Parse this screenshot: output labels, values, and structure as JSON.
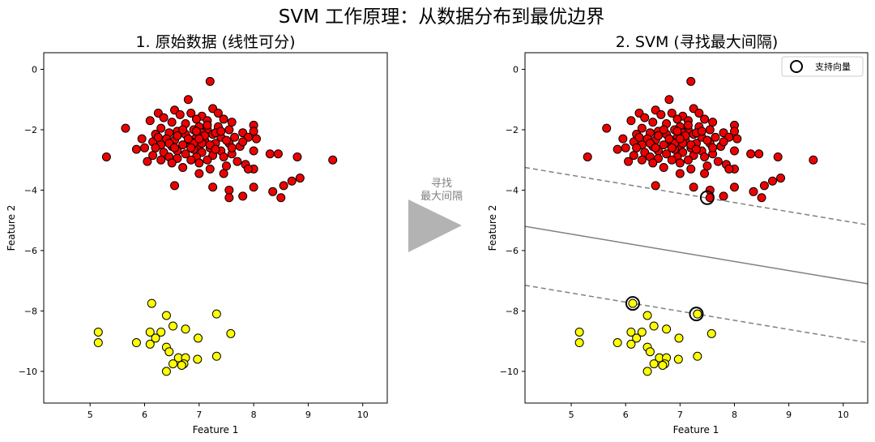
{
  "figure": {
    "title": "SVM 工作原理：从数据分布到最优边界",
    "arrow_label_line1": "寻找",
    "arrow_label_line2": "最大间隔"
  },
  "colors": {
    "red": "#ee0000",
    "yellow": "#ffff00",
    "edge": "#000000",
    "boundary": "#808080",
    "arrow": "#b3b3b3"
  },
  "chart_data": [
    {
      "type": "scatter",
      "title": "1. 原始数据 (线性可分)",
      "xlabel": "Feature 1",
      "ylabel": "Feature 2",
      "xlim": [
        4.15,
        10.45
      ],
      "ylim": [
        -11.05,
        0.55
      ],
      "xticks": [
        5,
        6,
        7,
        8,
        9,
        10
      ],
      "yticks": [
        0,
        -2,
        -4,
        -6,
        -8,
        -10
      ],
      "series": [
        {
          "name": "class_red",
          "color": "#ee0000",
          "points": [
            [
              7.2,
              -0.4
            ],
            [
              6.8,
              -1.0
            ],
            [
              7.25,
              -1.3
            ],
            [
              6.25,
              -1.45
            ],
            [
              6.55,
              -1.35
            ],
            [
              6.85,
              -1.45
            ],
            [
              7.35,
              -1.45
            ],
            [
              7.05,
              -1.55
            ],
            [
              6.95,
              -1.65
            ],
            [
              6.35,
              -1.6
            ],
            [
              7.15,
              -1.7
            ],
            [
              7.45,
              -1.65
            ],
            [
              6.65,
              -1.5
            ],
            [
              7.6,
              -1.75
            ],
            [
              6.1,
              -1.7
            ],
            [
              5.65,
              -1.95
            ],
            [
              6.5,
              -1.75
            ],
            [
              6.75,
              -1.8
            ],
            [
              7.35,
              -1.9
            ],
            [
              7.0,
              -1.9
            ],
            [
              6.3,
              -1.95
            ],
            [
              6.9,
              -2.0
            ],
            [
              7.15,
              -2.0
            ],
            [
              7.55,
              -2.0
            ],
            [
              8.0,
              -1.85
            ],
            [
              6.6,
              -2.05
            ],
            [
              6.2,
              -2.15
            ],
            [
              6.45,
              -2.1
            ],
            [
              7.8,
              -2.1
            ],
            [
              7.25,
              -2.15
            ],
            [
              6.75,
              -2.15
            ],
            [
              7.05,
              -2.1
            ],
            [
              8.0,
              -2.05
            ],
            [
              6.95,
              -2.25
            ],
            [
              6.4,
              -2.3
            ],
            [
              5.95,
              -2.3
            ],
            [
              7.4,
              -2.25
            ],
            [
              7.65,
              -2.25
            ],
            [
              6.15,
              -2.4
            ],
            [
              6.55,
              -2.35
            ],
            [
              7.1,
              -2.35
            ],
            [
              7.9,
              -2.25
            ],
            [
              6.85,
              -2.4
            ],
            [
              7.3,
              -2.45
            ],
            [
              8.05,
              -2.3
            ],
            [
              6.3,
              -2.5
            ],
            [
              6.7,
              -2.5
            ],
            [
              7.55,
              -2.45
            ],
            [
              7.0,
              -2.55
            ],
            [
              6.0,
              -2.6
            ],
            [
              5.85,
              -2.65
            ],
            [
              6.2,
              -2.6
            ],
            [
              6.5,
              -2.55
            ],
            [
              7.2,
              -2.6
            ],
            [
              7.75,
              -2.55
            ],
            [
              6.9,
              -2.65
            ],
            [
              6.6,
              -2.7
            ],
            [
              7.4,
              -2.7
            ],
            [
              6.35,
              -2.75
            ],
            [
              8.0,
              -2.7
            ],
            [
              7.05,
              -2.75
            ],
            [
              6.75,
              -2.8
            ],
            [
              7.25,
              -2.85
            ],
            [
              7.6,
              -2.8
            ],
            [
              6.15,
              -2.85
            ],
            [
              6.45,
              -2.9
            ],
            [
              6.95,
              -2.9
            ],
            [
              8.3,
              -2.8
            ],
            [
              6.6,
              -2.95
            ],
            [
              7.45,
              -2.9
            ],
            [
              6.85,
              -3.0
            ],
            [
              7.15,
              -3.0
            ],
            [
              8.45,
              -2.8
            ],
            [
              6.3,
              -3.0
            ],
            [
              6.05,
              -3.05
            ],
            [
              7.7,
              -3.05
            ],
            [
              7.0,
              -3.1
            ],
            [
              6.5,
              -3.1
            ],
            [
              5.3,
              -2.9
            ],
            [
              8.8,
              -2.9
            ],
            [
              9.45,
              -3.0
            ],
            [
              7.5,
              -3.2
            ],
            [
              7.85,
              -3.15
            ],
            [
              6.7,
              -3.25
            ],
            [
              8.0,
              -3.3
            ],
            [
              7.2,
              -3.3
            ],
            [
              7.9,
              -3.3
            ],
            [
              7.45,
              -3.45
            ],
            [
              8.7,
              -3.7
            ],
            [
              8.55,
              -3.85
            ],
            [
              8.85,
              -3.6
            ],
            [
              6.55,
              -3.85
            ],
            [
              7.55,
              -4.0
            ],
            [
              7.55,
              -4.25
            ],
            [
              7.0,
              -3.45
            ],
            [
              8.0,
              -3.9
            ],
            [
              8.35,
              -4.05
            ],
            [
              8.5,
              -4.25
            ],
            [
              7.8,
              -4.2
            ],
            [
              7.25,
              -3.9
            ],
            [
              6.9,
              -2.45
            ],
            [
              7.1,
              -2.2
            ],
            [
              6.8,
              -2.3
            ],
            [
              7.3,
              -2.1
            ],
            [
              6.6,
              -2.2
            ],
            [
              7.5,
              -2.35
            ],
            [
              6.95,
              -2.05
            ],
            [
              7.2,
              -2.5
            ],
            [
              6.45,
              -2.45
            ],
            [
              7.4,
              -2.05
            ],
            [
              6.7,
              -2.0
            ],
            [
              7.05,
              -2.45
            ],
            [
              7.3,
              -2.65
            ],
            [
              6.85,
              -2.6
            ],
            [
              7.6,
              -2.6
            ],
            [
              6.25,
              -2.25
            ],
            [
              7.0,
              -2.3
            ],
            [
              7.15,
              -1.85
            ],
            [
              6.55,
              -2.6
            ],
            [
              7.8,
              -2.4
            ]
          ]
        },
        {
          "name": "class_yellow",
          "color": "#ffff00",
          "points": [
            [
              6.13,
              -7.75
            ],
            [
              7.32,
              -8.1
            ],
            [
              6.4,
              -8.15
            ],
            [
              6.75,
              -8.6
            ],
            [
              6.52,
              -8.5
            ],
            [
              5.15,
              -8.7
            ],
            [
              6.1,
              -8.7
            ],
            [
              6.3,
              -8.7
            ],
            [
              7.58,
              -8.75
            ],
            [
              6.2,
              -8.9
            ],
            [
              6.98,
              -8.9
            ],
            [
              5.15,
              -9.05
            ],
            [
              5.85,
              -9.05
            ],
            [
              6.1,
              -9.1
            ],
            [
              6.4,
              -9.2
            ],
            [
              6.45,
              -9.35
            ],
            [
              7.32,
              -9.5
            ],
            [
              6.62,
              -9.55
            ],
            [
              6.75,
              -9.55
            ],
            [
              6.97,
              -9.6
            ],
            [
              6.52,
              -9.75
            ],
            [
              6.72,
              -9.75
            ],
            [
              6.68,
              -9.8
            ],
            [
              6.4,
              -10.0
            ]
          ]
        }
      ]
    },
    {
      "type": "scatter",
      "title": "2. SVM (寻找最大间隔)",
      "xlabel": "Feature 1",
      "ylabel": "Feature 2",
      "xlim": [
        4.15,
        10.45
      ],
      "ylim": [
        -11.05,
        0.55
      ],
      "xticks": [
        5,
        6,
        7,
        8,
        9,
        10
      ],
      "yticks": [
        0,
        -2,
        -4,
        -6,
        -8,
        -10
      ],
      "legend": {
        "label": "支持向量",
        "position": "top-right"
      },
      "decision_boundary": {
        "y_at_xmin": -5.2,
        "y_at_xmax": -7.1
      },
      "margin_upper": {
        "y_at_xmin": -3.25,
        "y_at_xmax": -5.15
      },
      "margin_lower": {
        "y_at_xmin": -7.15,
        "y_at_xmax": -9.05
      },
      "support_vectors": [
        [
          7.5,
          -4.25
        ],
        [
          6.13,
          -7.75
        ],
        [
          7.3,
          -8.1
        ]
      ]
    }
  ]
}
